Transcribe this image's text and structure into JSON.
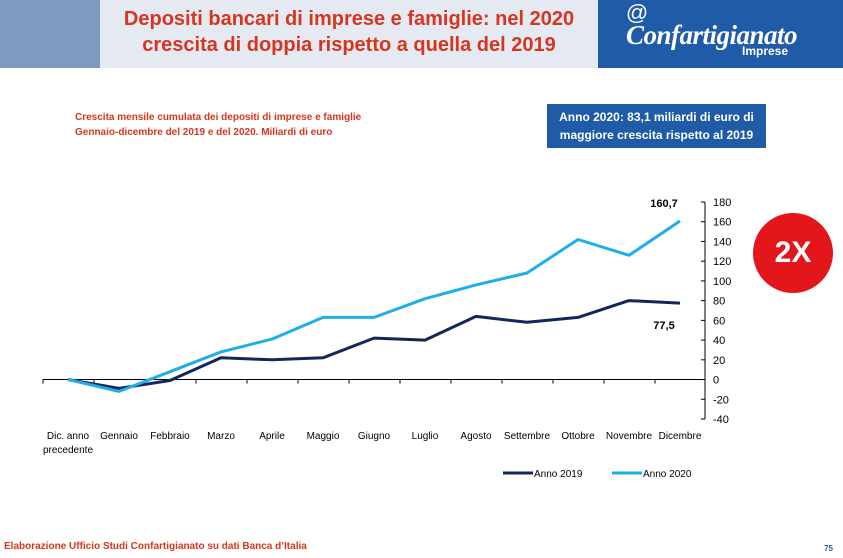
{
  "header": {
    "title_line1": "Depositi bancari di imprese e famiglie: nel 2020",
    "title_line2": "crescita di doppia rispetto a quella del 2019"
  },
  "logo": {
    "symbol": "@",
    "name": "Confartigianato",
    "sub": "Imprese"
  },
  "subtitle": {
    "line1": "Crescita mensile cumulata dei depositi di imprese e famiglie",
    "line2": "Gennaio-dicembre del 2019 e del 2020. Miliardi di euro"
  },
  "callout": {
    "line1": "Anno 2020: 83,1 miliardi di euro di",
    "line2": "maggiore crescita rispetto al 2019"
  },
  "badge": "2X",
  "footer": {
    "note": "Elaborazione Ufficio Studi Confartigianato su dati Banca d’Italia",
    "page_number": "75"
  },
  "colors": {
    "series_2019": "#13285a",
    "series_2020": "#1eaee9",
    "accent_red": "#d6361f",
    "brand_blue": "#1f5ba6"
  },
  "chart_data": {
    "type": "line",
    "categories": [
      "Dic. anno precedente",
      "Gennaio",
      "Febbraio",
      "Marzo",
      "Aprile",
      "Maggio",
      "Giugno",
      "Luglio",
      "Agosto",
      "Settembre",
      "Ottobre",
      "Novembre",
      "Dicembre"
    ],
    "series": [
      {
        "name": "Anno 2019",
        "values": [
          0,
          -9,
          -1,
          22,
          20,
          22,
          42,
          40,
          64,
          58,
          63,
          80,
          77.5
        ]
      },
      {
        "name": "Anno 2020",
        "values": [
          0,
          -12,
          8,
          28,
          41,
          63,
          63,
          82,
          96,
          108,
          142,
          126,
          160.7
        ]
      }
    ],
    "data_labels": [
      {
        "series": "Anno 2020",
        "category": "Dicembre",
        "text": "160,7"
      },
      {
        "series": "Anno 2019",
        "category": "Dicembre",
        "text": "77,5"
      }
    ],
    "y_ticks": [
      "180",
      "160",
      "140",
      "120",
      "100",
      "80",
      "60",
      "40",
      "20",
      "0",
      "-20",
      "-40"
    ],
    "ylim": [
      -40,
      180
    ],
    "y_axis_side": "right",
    "grid": false,
    "legend_position": "bottom-right"
  }
}
